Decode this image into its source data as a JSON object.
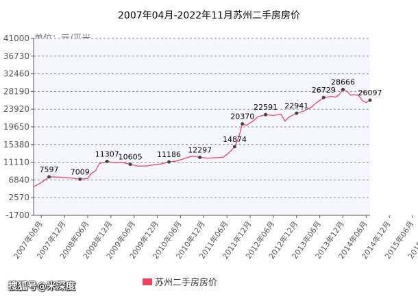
{
  "chart_data": {
    "type": "line",
    "title": "2007年04月-2022年11月苏州二手房房价",
    "unit_label": "单位：元/平米",
    "ylim": [
      -1700,
      41000
    ],
    "yticks": [
      "41000",
      "36730",
      "32460",
      "28190",
      "23920",
      "19650",
      "15380",
      "11110",
      "6840",
      "2570",
      "-1700"
    ],
    "ytick_values": [
      41000,
      36730,
      32460,
      28190,
      23920,
      19650,
      15380,
      11110,
      6840,
      2570,
      -1700
    ],
    "xticks": [
      "2007年06月",
      "2007年12月",
      "2008年06月",
      "2008年12月",
      "2009年06月",
      "2009年12月",
      "2010年06月",
      "2010年12月",
      "2011年06月",
      "2011年12月",
      "2012年06月",
      "2012年12月",
      "2013年06月",
      "2013年12月",
      "2014年06月",
      "2014年12月",
      "2015年06月",
      "2015年12月",
      "2016年06月",
      "2016年12月",
      "2017年06月",
      "2017年12月",
      "2018年06月",
      "2018年12月",
      "2019年06月",
      "2019年12月",
      "2020年06月",
      "2020年12月",
      "2021年06月",
      "2021年12月",
      "2022年06月"
    ],
    "grid": true,
    "legend_position": "bottom",
    "series": [
      {
        "name": "苏州二手房房价",
        "color": "#f0425e",
        "points": [
          [
            0,
            5200
          ],
          [
            2,
            6200
          ],
          [
            4,
            7597
          ],
          [
            7,
            7500
          ],
          [
            10,
            7300
          ],
          [
            12,
            7009
          ],
          [
            14,
            7200
          ],
          [
            15,
            8500
          ],
          [
            16,
            9000
          ],
          [
            17,
            10800
          ],
          [
            19,
            11307
          ],
          [
            21,
            11000
          ],
          [
            23,
            11100
          ],
          [
            25,
            10605
          ],
          [
            27,
            10200
          ],
          [
            29,
            10200
          ],
          [
            31,
            10500
          ],
          [
            33,
            10700
          ],
          [
            35,
            11186
          ],
          [
            37,
            11400
          ],
          [
            39,
            12000
          ],
          [
            41,
            12600
          ],
          [
            43,
            12297
          ],
          [
            45,
            12100
          ],
          [
            47,
            12200
          ],
          [
            49,
            12300
          ],
          [
            50,
            13000
          ],
          [
            51,
            13800
          ],
          [
            52,
            14874
          ],
          [
            53,
            17000
          ],
          [
            54,
            20370
          ],
          [
            55,
            20000
          ],
          [
            56,
            20600
          ],
          [
            57,
            21200
          ],
          [
            58,
            22100
          ],
          [
            60,
            22591
          ],
          [
            62,
            22400
          ],
          [
            64,
            22700
          ],
          [
            65,
            21000
          ],
          [
            66,
            22000
          ],
          [
            68,
            22941
          ],
          [
            70,
            23500
          ],
          [
            72,
            24500
          ],
          [
            73,
            25400
          ],
          [
            74,
            26000
          ],
          [
            75,
            26729
          ],
          [
            77,
            27000
          ],
          [
            78,
            26800
          ],
          [
            79,
            27400
          ],
          [
            80,
            28666
          ],
          [
            81,
            28200
          ],
          [
            82,
            27300
          ],
          [
            83,
            27400
          ],
          [
            84,
            27300
          ],
          [
            85,
            26000
          ],
          [
            86,
            25500
          ],
          [
            87,
            26097
          ]
        ],
        "labels": [
          {
            "i": 4,
            "text": "7597"
          },
          {
            "i": 12,
            "text": "7009"
          },
          {
            "i": 19,
            "text": "11307"
          },
          {
            "i": 25,
            "text": "10605"
          },
          {
            "i": 35,
            "text": "11186"
          },
          {
            "i": 43,
            "text": "12297"
          },
          {
            "i": 52,
            "text": "14874"
          },
          {
            "i": 54,
            "text": "20370"
          },
          {
            "i": 60,
            "text": "22591"
          },
          {
            "i": 68,
            "text": "22941"
          },
          {
            "i": 75,
            "text": "26729"
          },
          {
            "i": 80,
            "text": "28666"
          },
          {
            "i": 87,
            "text": "26097"
          }
        ]
      }
    ]
  },
  "watermark": "搜狐号@米深度"
}
